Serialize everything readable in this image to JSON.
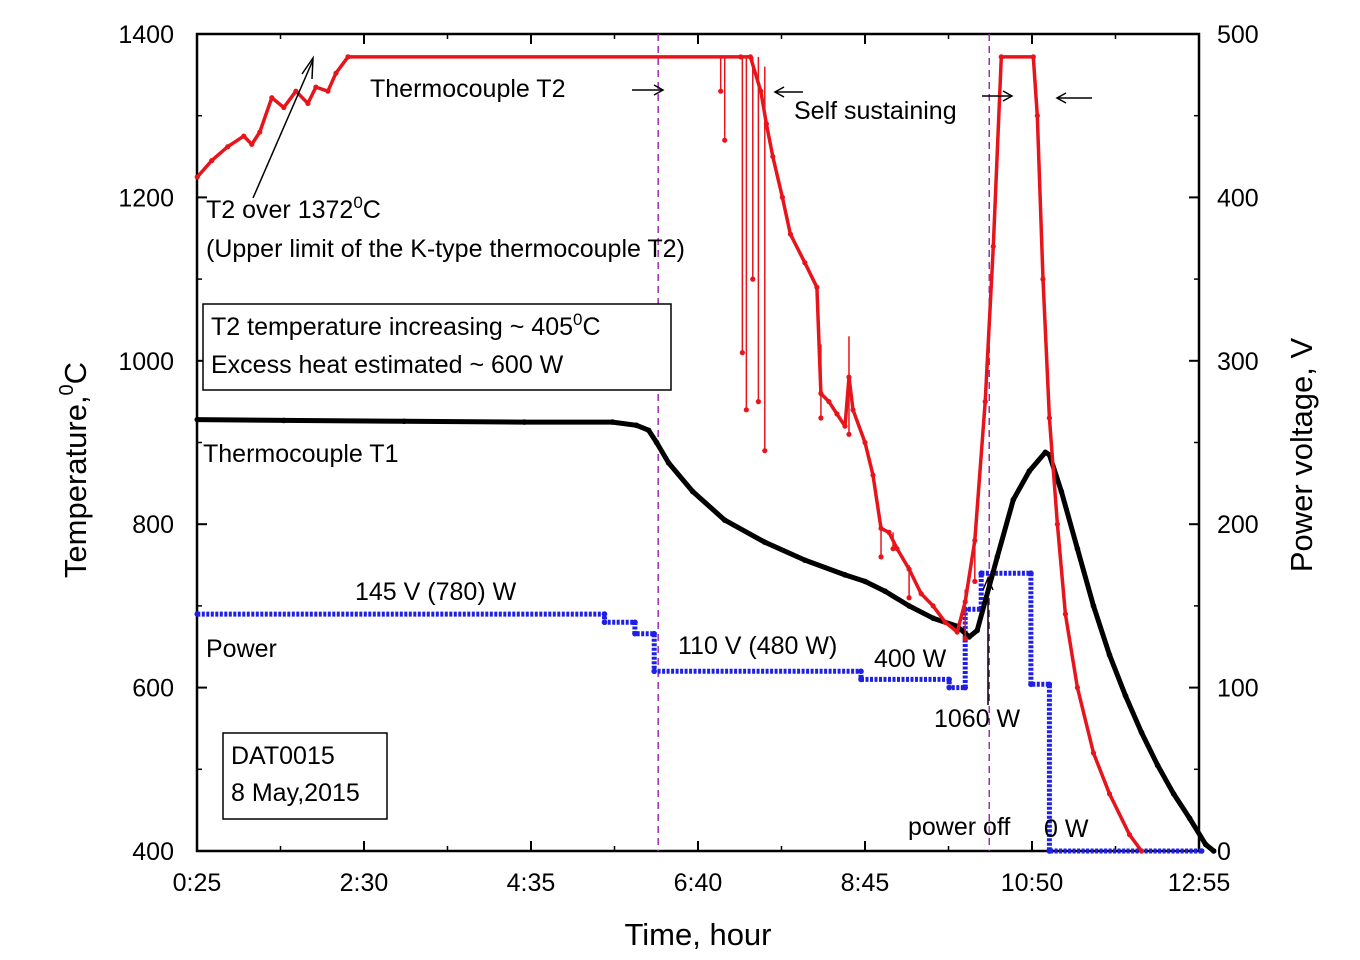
{
  "chart_data": {
    "type": "line",
    "title": "",
    "xlabel": "Time, hour",
    "ylabel_left": "Temperature,",
    "ylabel_left_sup": "0",
    "ylabel_left_unit": "C",
    "ylabel_right": "Power voltage, V",
    "x_unit": "hours",
    "xlim": [
      0.4167,
      12.9167
    ],
    "ylim_left": [
      400,
      1400
    ],
    "ylim_right": [
      0,
      500
    ],
    "x_tick_values": [
      0.4167,
      2.5,
      4.5833,
      6.6667,
      8.75,
      10.8333,
      12.9167
    ],
    "x_tick_labels": [
      "0:25",
      "2:30",
      "4:35",
      "6:40",
      "8:45",
      "10:50",
      "12:55"
    ],
    "y_left_ticks": [
      400,
      600,
      800,
      1000,
      1200,
      1400
    ],
    "y_left_tick_labels": [
      "400",
      "600",
      "800",
      "1000",
      "1200",
      "1400"
    ],
    "y_right_ticks": [
      0,
      100,
      200,
      300,
      400,
      500
    ],
    "y_right_tick_labels": [
      "0",
      "100",
      "200",
      "300",
      "400",
      "500"
    ],
    "vlines": [
      6.17,
      10.3
    ],
    "series": [
      {
        "name": "Thermocouple T2",
        "axis": "left",
        "color": "#e8141b",
        "points": [
          [
            0.42,
            1225
          ],
          [
            0.6,
            1245
          ],
          [
            0.8,
            1262
          ],
          [
            1.0,
            1275
          ],
          [
            1.1,
            1265
          ],
          [
            1.2,
            1280
          ],
          [
            1.35,
            1322
          ],
          [
            1.5,
            1310
          ],
          [
            1.65,
            1330
          ],
          [
            1.8,
            1315
          ],
          [
            1.9,
            1335
          ],
          [
            2.05,
            1330
          ],
          [
            2.15,
            1352
          ],
          [
            2.3,
            1372
          ],
          [
            7.2,
            1372
          ],
          [
            7.32,
            1372
          ],
          [
            7.45,
            1330
          ],
          [
            7.52,
            1290
          ],
          [
            7.6,
            1250
          ],
          [
            7.72,
            1200
          ],
          [
            7.82,
            1155
          ],
          [
            8.0,
            1120
          ],
          [
            8.15,
            1090
          ],
          [
            8.2,
            960
          ],
          [
            8.3,
            950
          ],
          [
            8.4,
            935
          ],
          [
            8.5,
            920
          ],
          [
            8.55,
            980
          ],
          [
            8.6,
            940
          ],
          [
            8.75,
            900
          ],
          [
            8.85,
            860
          ],
          [
            8.95,
            795
          ],
          [
            9.05,
            790
          ],
          [
            9.15,
            770
          ],
          [
            9.3,
            745
          ],
          [
            9.45,
            715
          ],
          [
            9.6,
            700
          ],
          [
            9.75,
            680
          ],
          [
            9.9,
            668
          ],
          [
            10.0,
            705
          ],
          [
            10.12,
            780
          ],
          [
            10.25,
            950
          ],
          [
            10.35,
            1140
          ],
          [
            10.45,
            1372
          ],
          [
            10.85,
            1372
          ],
          [
            10.9,
            1300
          ],
          [
            10.97,
            1100
          ],
          [
            11.05,
            930
          ],
          [
            11.15,
            800
          ],
          [
            11.25,
            690
          ],
          [
            11.4,
            600
          ],
          [
            11.6,
            520
          ],
          [
            11.8,
            470
          ],
          [
            12.05,
            420
          ],
          [
            12.2,
            400
          ]
        ],
        "spikes": [
          [
            6.95,
            1372,
            1330
          ],
          [
            7.0,
            1372,
            1270
          ],
          [
            7.22,
            1372,
            1010
          ],
          [
            7.27,
            1372,
            940
          ],
          [
            7.35,
            1372,
            1100
          ],
          [
            7.42,
            1372,
            950
          ],
          [
            7.5,
            1360,
            890
          ],
          [
            8.2,
            1020,
            930
          ],
          [
            8.55,
            1030,
            910
          ],
          [
            8.95,
            800,
            760
          ],
          [
            9.1,
            790,
            770
          ],
          [
            9.3,
            750,
            710
          ],
          [
            10.0,
            720,
            660
          ],
          [
            10.12,
            790,
            730
          ]
        ]
      },
      {
        "name": "Thermocouple T1",
        "axis": "left",
        "color": "#000000",
        "points": [
          [
            0.42,
            928
          ],
          [
            1.5,
            927
          ],
          [
            3.0,
            926
          ],
          [
            4.5,
            925
          ],
          [
            5.6,
            925
          ],
          [
            5.9,
            921
          ],
          [
            6.05,
            915
          ],
          [
            6.15,
            900
          ],
          [
            6.3,
            875
          ],
          [
            6.6,
            840
          ],
          [
            7.0,
            805
          ],
          [
            7.5,
            778
          ],
          [
            8.0,
            756
          ],
          [
            8.5,
            738
          ],
          [
            8.75,
            730
          ],
          [
            9.0,
            718
          ],
          [
            9.3,
            700
          ],
          [
            9.6,
            685
          ],
          [
            9.9,
            675
          ],
          [
            10.05,
            662
          ],
          [
            10.15,
            670
          ],
          [
            10.4,
            760
          ],
          [
            10.6,
            830
          ],
          [
            10.8,
            865
          ],
          [
            11.0,
            888
          ],
          [
            11.05,
            885
          ],
          [
            11.2,
            840
          ],
          [
            11.4,
            770
          ],
          [
            11.6,
            700
          ],
          [
            11.8,
            640
          ],
          [
            12.0,
            590
          ],
          [
            12.2,
            545
          ],
          [
            12.4,
            505
          ],
          [
            12.6,
            470
          ],
          [
            12.8,
            440
          ],
          [
            13.0,
            408
          ],
          [
            13.1,
            400
          ]
        ]
      },
      {
        "name": "Power",
        "axis": "right",
        "color": "#1f1fe6",
        "points": [
          [
            0.42,
            145
          ],
          [
            5.5,
            145
          ],
          [
            5.5,
            140
          ],
          [
            5.88,
            140
          ],
          [
            5.88,
            133
          ],
          [
            6.12,
            133
          ],
          [
            6.12,
            110
          ],
          [
            8.7,
            110
          ],
          [
            8.7,
            105
          ],
          [
            9.8,
            105
          ],
          [
            9.8,
            100
          ],
          [
            10.0,
            100
          ],
          [
            10.0,
            148
          ],
          [
            10.2,
            148
          ],
          [
            10.2,
            170
          ],
          [
            10.82,
            170
          ],
          [
            10.82,
            102
          ],
          [
            11.05,
            102
          ],
          [
            11.05,
            0
          ],
          [
            12.95,
            0
          ]
        ]
      }
    ],
    "annotations": {
      "t2_label": "Thermocouple T2",
      "self_sustaining": "Self sustaining",
      "t2_over_line1": "T2 over 1372",
      "t2_over_sup": "0",
      "t2_over_unit": "C",
      "t2_over_line2": "(Upper limit of the K-type thermocouple T2)",
      "box1_line1": "T2 temperature increasing ~ 405",
      "box1_sup": "0",
      "box1_unit": "C",
      "box1_line2": "Excess heat estimated ~ 600 W",
      "t1_label": "Thermocouple T1",
      "power_label": "Power",
      "p145": "145 V (780) W",
      "p110": "110 V (480 W)",
      "p400": "400 W",
      "p1060": "1060 W",
      "power_off": "power off",
      "p0": "0 W",
      "box2_line1": "DAT0015",
      "box2_line2": "8 May,2015"
    }
  }
}
